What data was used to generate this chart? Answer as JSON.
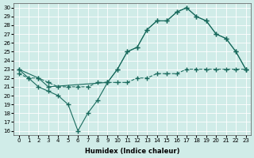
{
  "xlabel": "Humidex (Indice chaleur)",
  "ylabel": "",
  "xlim": [
    -0.5,
    23.5
  ],
  "ylim": [
    15.5,
    30.5
  ],
  "yticks": [
    16,
    17,
    18,
    19,
    20,
    21,
    22,
    23,
    24,
    25,
    26,
    27,
    28,
    29,
    30
  ],
  "xticks": [
    0,
    1,
    2,
    3,
    4,
    5,
    6,
    7,
    8,
    9,
    10,
    11,
    12,
    13,
    14,
    15,
    16,
    17,
    18,
    19,
    20,
    21,
    22,
    23
  ],
  "bg_color": "#d0ece8",
  "grid_color": "#ffffff",
  "line_color": "#1a6b5e",
  "line1_x": [
    0,
    1,
    2,
    3,
    4,
    5,
    6,
    7,
    8,
    9,
    10,
    11,
    12,
    13,
    14,
    15,
    16,
    17,
    18,
    19,
    20,
    21,
    22,
    23
  ],
  "line1_y": [
    23,
    22,
    21,
    20.5,
    20,
    19,
    16,
    18,
    19.5,
    21.5,
    23,
    25,
    25.5,
    27.5,
    28.5,
    28.5,
    29.5,
    30,
    29,
    28.5,
    27,
    26.5,
    25,
    23
  ],
  "line2_x": [
    0,
    2,
    3,
    9,
    10,
    11,
    12,
    13,
    14,
    15,
    16,
    17,
    18,
    19,
    20,
    21,
    22,
    23
  ],
  "line2_y": [
    23,
    22,
    21,
    21.5,
    23,
    25,
    25.5,
    27.5,
    28.5,
    28.5,
    29.5,
    30,
    29,
    28.5,
    27,
    26.5,
    25,
    23
  ],
  "line3_x": [
    0,
    1,
    2,
    3,
    4,
    5,
    6,
    7,
    8,
    9,
    10,
    11,
    12,
    13,
    14,
    15,
    16,
    17,
    18,
    19,
    20,
    21,
    22,
    23
  ],
  "line3_y": [
    22.5,
    22,
    22,
    21.5,
    21,
    21,
    21,
    21,
    21.5,
    21.5,
    21.5,
    21.5,
    22,
    22,
    22.5,
    22.5,
    22.5,
    23,
    23,
    23,
    23,
    23,
    23,
    23
  ]
}
